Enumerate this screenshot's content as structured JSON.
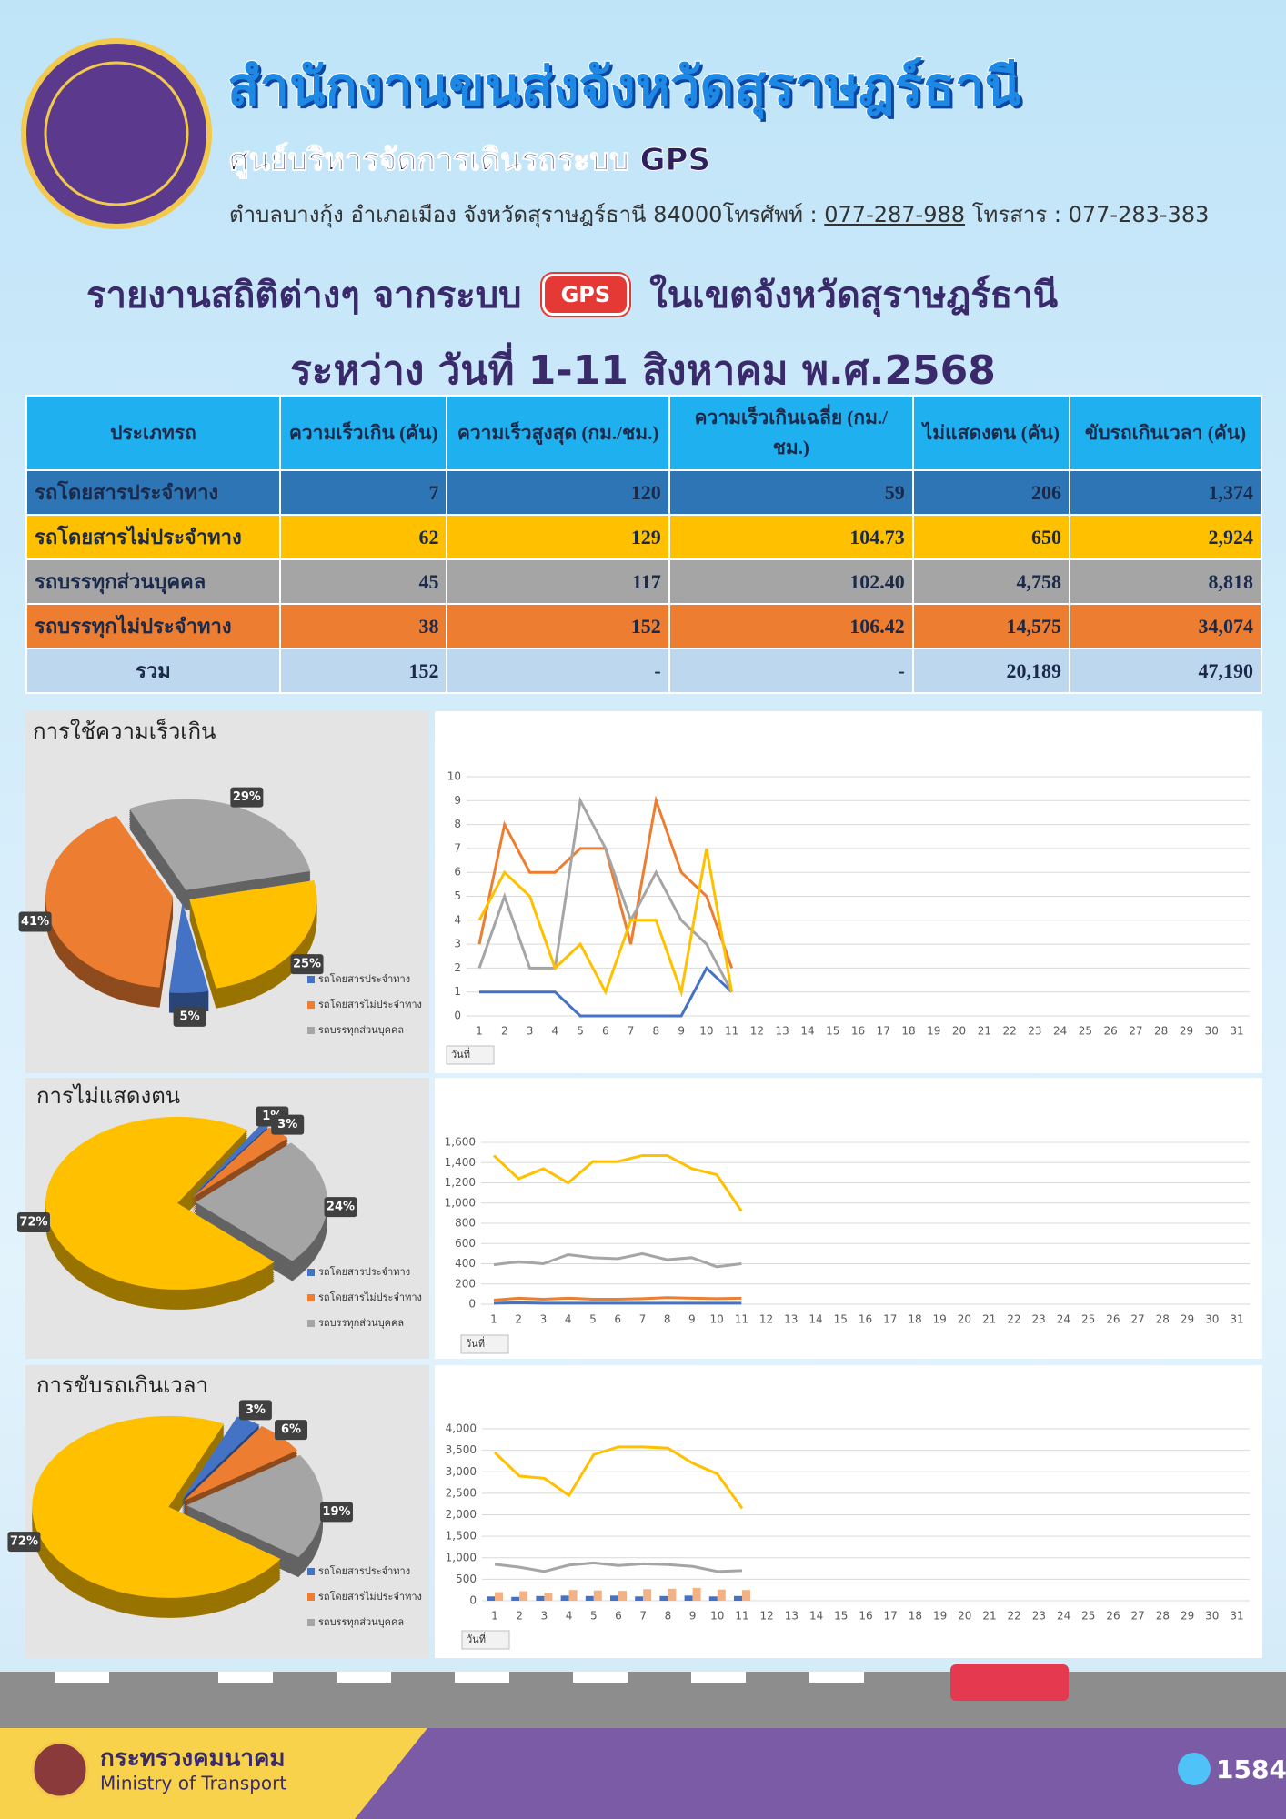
{
  "header": {
    "title": "สำนักงานขนส่งจังหวัดสุราษฎร์ธานี",
    "subtitle": "ศูนย์บริหารจัดการเดินรถระบบ GPS",
    "address": "ตำบลบางกุ้ง อำเภอเมือง จังหวัดสุราษฎร์ธานี 84000โทรศัพท์ : ",
    "phone": "077-287-988",
    "fax": " โทรสาร : 077-283-383"
  },
  "report": {
    "title_left": "รายงานสถิติต่างๆ จากระบบ",
    "badge": "GPS",
    "title_right": "ในเขตจังหวัดสุราษฎร์ธานี",
    "period": "ระหว่าง วันที่ 1-11 สิงหาคม พ.ศ.2568"
  },
  "table": {
    "headers": [
      "ประเภทรถ",
      "ความเร็วเกิน (คัน)",
      "ความเร็วสูงสุด (กม./ชม.)",
      "ความเร็วเกินเฉลี่ย (กม./ชม.)",
      "ไม่แสดงตน (คัน)",
      "ขับรถเกินเวลา (คัน)"
    ],
    "rows": [
      [
        "รถโดยสารประจำทาง",
        "7",
        "120",
        "59",
        "206",
        "1,374"
      ],
      [
        "รถโดยสารไม่ประจำทาง",
        "62",
        "129",
        "104.73",
        "650",
        "2,924"
      ],
      [
        "รถบรรทุกส่วนบุคคล",
        "45",
        "117",
        "102.40",
        "4,758",
        "8,818"
      ],
      [
        "รถบรรทุกไม่ประจำทาง",
        "38",
        "152",
        "106.42",
        "14,575",
        "34,074"
      ],
      [
        "รวม",
        "152",
        "-",
        "-",
        "20,189",
        "47,190"
      ]
    ]
  },
  "chart_data": [
    {
      "type": "pie",
      "title": "การใช้ความเร็วเกิน",
      "categories": [
        "รถโดยสารประจำทาง",
        "รถโดยสารไม่ประจำทาง",
        "รถบรรทุกส่วนบุคคล",
        null
      ],
      "values": [
        5,
        41,
        29,
        25
      ],
      "value_labels": [
        "5%",
        "41%",
        "29%",
        "25%"
      ],
      "colors": [
        "#4472c4",
        "#ed7d31",
        "#a5a5a5",
        "#ffc000"
      ]
    },
    {
      "type": "line",
      "x_label": "วันที่",
      "categories": [
        1,
        2,
        3,
        4,
        5,
        6,
        7,
        8,
        9,
        10,
        11,
        12,
        13,
        14,
        15,
        16,
        17,
        18,
        19,
        20,
        21,
        22,
        23,
        24,
        25,
        26,
        27,
        28,
        29,
        30,
        31
      ],
      "ylim": [
        0,
        10
      ],
      "yticks": [
        0,
        1,
        2,
        3,
        4,
        5,
        6,
        7,
        8,
        9,
        10
      ],
      "grid": true,
      "series": [
        {
          "color": "#4472c4",
          "values": [
            1,
            1,
            1,
            1,
            0,
            0,
            0,
            0,
            0,
            2,
            1,
            null,
            null,
            null,
            null,
            null,
            null,
            null,
            null,
            null,
            null,
            null,
            null,
            null,
            null,
            null,
            null,
            null,
            null,
            null,
            null
          ]
        },
        {
          "color": "#ed7d31",
          "values": [
            3,
            8,
            6,
            6,
            7,
            7,
            3,
            9,
            6,
            5,
            2,
            null,
            null,
            null,
            null,
            null,
            null,
            null,
            null,
            null,
            null,
            null,
            null,
            null,
            null,
            null,
            null,
            null,
            null,
            null,
            null
          ]
        },
        {
          "color": "#a5a5a5",
          "values": [
            2,
            5,
            2,
            2,
            9,
            7,
            4,
            6,
            4,
            3,
            1,
            null,
            null,
            null,
            null,
            null,
            null,
            null,
            null,
            null,
            null,
            null,
            null,
            null,
            null,
            null,
            null,
            null,
            null,
            null,
            null
          ]
        },
        {
          "color": "#ffc000",
          "values": [
            4,
            6,
            5,
            2,
            3,
            1,
            4,
            4,
            1,
            7,
            1,
            null,
            null,
            null,
            null,
            null,
            null,
            null,
            null,
            null,
            null,
            null,
            null,
            null,
            null,
            null,
            null,
            null,
            null,
            null,
            null
          ]
        }
      ]
    },
    {
      "type": "pie",
      "title": "การไม่แสดงตน",
      "categories": [
        "รถโดยสารประจำทาง",
        "รถโดยสารไม่ประจำทาง",
        "รถบรรทุกส่วนบุคคล",
        null
      ],
      "values": [
        1,
        3,
        24,
        72
      ],
      "value_labels": [
        "1%",
        "3%",
        "24%",
        "72%"
      ],
      "colors": [
        "#4472c4",
        "#ed7d31",
        "#a5a5a5",
        "#ffc000"
      ]
    },
    {
      "type": "line",
      "x_label": "วันที่",
      "categories": [
        1,
        2,
        3,
        4,
        5,
        6,
        7,
        8,
        9,
        10,
        11,
        12,
        13,
        14,
        15,
        16,
        17,
        18,
        19,
        20,
        21,
        22,
        23,
        24,
        25,
        26,
        27,
        28,
        29,
        30,
        31
      ],
      "ylim": [
        0,
        1600
      ],
      "yticks": [
        0,
        200,
        400,
        600,
        800,
        {
          "value": 1000,
          "label": "1,000"
        },
        {
          "value": 1200,
          "label": "1,200"
        },
        {
          "value": 1400,
          "label": "1,400"
        },
        {
          "value": 1600,
          "label": "1,600"
        }
      ],
      "grid": true,
      "series": [
        {
          "color": "#4472c4",
          "values": [
            10,
            15,
            10,
            10,
            10,
            10,
            10,
            10,
            10,
            10,
            10,
            null,
            null,
            null,
            null,
            null,
            null,
            null,
            null,
            null,
            null,
            null,
            null,
            null,
            null,
            null,
            null,
            null,
            null,
            null,
            null
          ]
        },
        {
          "color": "#ed7d31",
          "values": [
            40,
            60,
            50,
            60,
            50,
            50,
            55,
            65,
            60,
            55,
            60,
            null,
            null,
            null,
            null,
            null,
            null,
            null,
            null,
            null,
            null,
            null,
            null,
            null,
            null,
            null,
            null,
            null,
            null,
            null,
            null
          ]
        },
        {
          "color": "#a5a5a5",
          "values": [
            390,
            420,
            400,
            490,
            460,
            450,
            500,
            440,
            460,
            370,
            400,
            null,
            null,
            null,
            null,
            null,
            null,
            null,
            null,
            null,
            null,
            null,
            null,
            null,
            null,
            null,
            null,
            null,
            null,
            null,
            null
          ]
        },
        {
          "color": "#ffc000",
          "values": [
            1470,
            1240,
            1340,
            1200,
            1410,
            1410,
            1470,
            1470,
            1340,
            1280,
            920,
            null,
            null,
            null,
            null,
            null,
            null,
            null,
            null,
            null,
            null,
            null,
            null,
            null,
            null,
            null,
            null,
            null,
            null,
            null,
            null
          ]
        }
      ]
    },
    {
      "type": "pie",
      "title": "การขับรถเกินเวลา",
      "categories": [
        "รถโดยสารประจำทาง",
        "รถโดยสารไม่ประจำทาง",
        "รถบรรทุกส่วนบุคคล",
        null
      ],
      "values": [
        3,
        6,
        19,
        72
      ],
      "value_labels": [
        "3%",
        "6%",
        "19%",
        "72%"
      ],
      "colors": [
        "#4472c4",
        "#ed7d31",
        "#a5a5a5",
        "#ffc000"
      ]
    },
    {
      "type": "line",
      "x_label": "วันที่",
      "categories": [
        1,
        2,
        3,
        4,
        5,
        6,
        7,
        8,
        9,
        10,
        11,
        12,
        13,
        14,
        15,
        16,
        17,
        18,
        19,
        20,
        21,
        22,
        23,
        24,
        25,
        26,
        27,
        28,
        29,
        30,
        31
      ],
      "ylim": [
        0,
        4000
      ],
      "yticks": [
        0,
        500,
        {
          "value": 1000,
          "label": "1,000"
        },
        {
          "value": 1500,
          "label": "1,500"
        },
        {
          "value": 2000,
          "label": "2,000"
        },
        {
          "value": 2500,
          "label": "2,500"
        },
        {
          "value": 3000,
          "label": "3,000"
        },
        {
          "value": 3500,
          "label": "3,500"
        },
        {
          "value": 4000,
          "label": "4,000"
        }
      ],
      "grid": true,
      "series": [
        {
          "color": "#4472c4",
          "mark": "bar",
          "values": [
            100,
            90,
            110,
            120,
            110,
            120,
            100,
            110,
            120,
            100,
            110,
            null,
            null,
            null,
            null,
            null,
            null,
            null,
            null,
            null,
            null,
            null,
            null,
            null,
            null,
            null,
            null,
            null,
            null,
            null,
            null
          ]
        },
        {
          "color": "#f4b183",
          "mark": "bar",
          "values": [
            200,
            220,
            190,
            250,
            240,
            230,
            270,
            280,
            300,
            260,
            250,
            null,
            null,
            null,
            null,
            null,
            null,
            null,
            null,
            null,
            null,
            null,
            null,
            null,
            null,
            null,
            null,
            null,
            null,
            null,
            null
          ]
        },
        {
          "color": "#a5a5a5",
          "values": [
            850,
            780,
            680,
            830,
            880,
            820,
            860,
            840,
            800,
            680,
            700,
            null,
            null,
            null,
            null,
            null,
            null,
            null,
            null,
            null,
            null,
            null,
            null,
            null,
            null,
            null,
            null,
            null,
            null,
            null,
            null
          ]
        },
        {
          "color": "#ffc000",
          "values": [
            3450,
            2900,
            2850,
            2450,
            3400,
            3580,
            3580,
            3550,
            3200,
            2950,
            2150,
            null,
            null,
            null,
            null,
            null,
            null,
            null,
            null,
            null,
            null,
            null,
            null,
            null,
            null,
            null,
            null,
            null,
            null,
            null,
            null
          ]
        }
      ]
    }
  ],
  "footer": {
    "ministry_th": "กระทรวงคมนาคม",
    "ministry_en": "Ministry of Transport",
    "call": "1584"
  }
}
